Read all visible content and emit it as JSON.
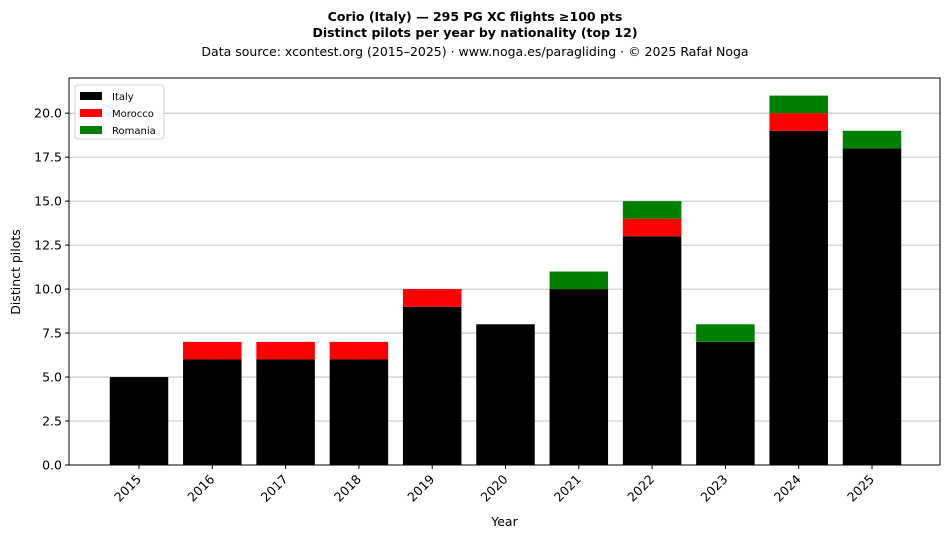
{
  "chart_data": {
    "type": "bar",
    "stacked": true,
    "title_lines": [
      "Corio (Italy)  —  295 PG XC flights ≥100 pts",
      "Distinct pilots per year by nationality (top 12)",
      "Data source: xcontest.org (2015–2025)  ·  www.noga.es/paragliding  ·  © 2025 Rafał Noga"
    ],
    "xlabel": "Year",
    "ylabel": "Distinct pilots",
    "ylim": [
      0,
      22
    ],
    "yticks": [
      "0.0",
      "2.5",
      "5.0",
      "7.5",
      "10.0",
      "12.5",
      "15.0",
      "17.5",
      "20.0"
    ],
    "grid": "horizontal",
    "legend_position": "top-left",
    "categories": [
      "2015",
      "2016",
      "2017",
      "2018",
      "2019",
      "2020",
      "2021",
      "2022",
      "2023",
      "2024",
      "2025"
    ],
    "series": [
      {
        "name": "Italy",
        "color": "#000000",
        "values": [
          5,
          6,
          6,
          6,
          9,
          8,
          10,
          13,
          7,
          19,
          18
        ]
      },
      {
        "name": "Morocco",
        "color": "#ff0000",
        "values": [
          0,
          1,
          1,
          1,
          1,
          0,
          0,
          1,
          0,
          1,
          0
        ]
      },
      {
        "name": "Romania",
        "color": "#008000",
        "values": [
          0,
          0,
          0,
          0,
          0,
          0,
          1,
          1,
          1,
          1,
          1
        ]
      }
    ]
  }
}
